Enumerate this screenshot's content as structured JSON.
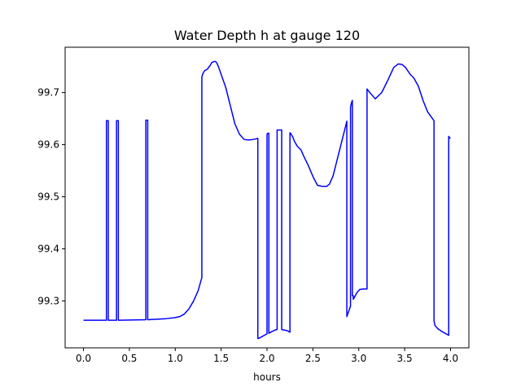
{
  "chart_data": {
    "type": "line",
    "title": "Water Depth h at gauge 120",
    "xlabel": "hours",
    "ylabel": "",
    "xlim": [
      -0.2,
      4.2
    ],
    "ylim": [
      99.21,
      99.787
    ],
    "xticks": [
      0.0,
      0.5,
      1.0,
      1.5,
      2.0,
      2.5,
      3.0,
      3.5,
      4.0
    ],
    "xtick_labels": [
      "0.0",
      "0.5",
      "1.0",
      "1.5",
      "2.0",
      "2.5",
      "3.0",
      "3.5",
      "4.0"
    ],
    "yticks": [
      99.3,
      99.4,
      99.5,
      99.6,
      99.7
    ],
    "ytick_labels": [
      "99.3",
      "99.4",
      "99.5",
      "99.6",
      "99.7"
    ],
    "grid": false,
    "series": [
      {
        "color": "#0000ff",
        "x": [
          0.0,
          0.25,
          0.25,
          0.27,
          0.27,
          0.36,
          0.36,
          0.38,
          0.38,
          0.68,
          0.68,
          0.7,
          0.7,
          0.8,
          0.9,
          1.0,
          1.05,
          1.1,
          1.15,
          1.2,
          1.25,
          1.29,
          1.29,
          1.3,
          1.32,
          1.35,
          1.38,
          1.4,
          1.43,
          1.45,
          1.47,
          1.5,
          1.55,
          1.6,
          1.65,
          1.7,
          1.75,
          1.8,
          1.85,
          1.9,
          1.9,
          1.92,
          1.95,
          2.0,
          2.0,
          2.01,
          2.02,
          2.02,
          2.05,
          2.1,
          2.11,
          2.11,
          2.13,
          2.16,
          2.16,
          2.22,
          2.25,
          2.25,
          2.26,
          2.28,
          2.3,
          2.33,
          2.37,
          2.4,
          2.45,
          2.5,
          2.55,
          2.6,
          2.65,
          2.68,
          2.72,
          2.77,
          2.82,
          2.87,
          2.87,
          2.91,
          2.91,
          2.92,
          2.93,
          2.93,
          2.94,
          2.94,
          2.98,
          3.01,
          3.05,
          3.09,
          3.09,
          3.12,
          3.18,
          3.25,
          3.32,
          3.38,
          3.43,
          3.47,
          3.51,
          3.56,
          3.6,
          3.65,
          3.7,
          3.75,
          3.82,
          3.82,
          3.83,
          3.86,
          3.9,
          3.95,
          3.98,
          3.98,
          3.99,
          4.0
        ],
        "y": [
          99.263,
          99.263,
          99.646,
          99.646,
          99.263,
          99.263,
          99.646,
          99.646,
          99.263,
          99.264,
          99.647,
          99.647,
          99.264,
          99.265,
          99.266,
          99.268,
          99.27,
          99.275,
          99.285,
          99.3,
          99.32,
          99.345,
          99.73,
          99.736,
          99.742,
          99.745,
          99.752,
          99.758,
          99.76,
          99.758,
          99.75,
          99.735,
          99.71,
          99.675,
          99.64,
          99.62,
          99.61,
          99.609,
          99.61,
          99.612,
          99.228,
          99.229,
          99.232,
          99.237,
          99.62,
          99.622,
          99.622,
          99.238,
          99.241,
          99.245,
          99.245,
          99.628,
          99.628,
          99.628,
          99.245,
          99.243,
          99.24,
          99.623,
          99.621,
          99.615,
          99.606,
          99.597,
          99.59,
          99.578,
          99.56,
          99.539,
          99.522,
          99.52,
          99.52,
          99.524,
          99.54,
          99.575,
          99.61,
          99.645,
          99.27,
          99.29,
          99.672,
          99.68,
          99.685,
          99.31,
          99.31,
          99.303,
          99.316,
          99.322,
          99.323,
          99.323,
          99.707,
          99.7,
          99.688,
          99.7,
          99.725,
          99.748,
          99.755,
          99.754,
          99.748,
          99.735,
          99.728,
          99.712,
          99.685,
          99.663,
          99.646,
          99.262,
          99.253,
          99.247,
          99.242,
          99.237,
          99.234,
          99.616,
          99.613,
          99.612
        ]
      }
    ]
  }
}
